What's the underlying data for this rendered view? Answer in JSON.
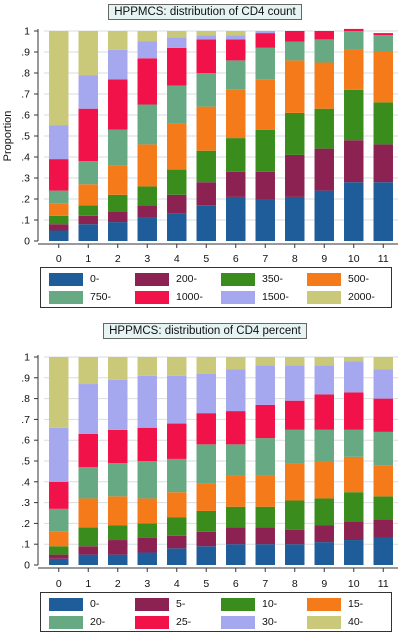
{
  "colors": [
    "#1e5d99",
    "#8c2251",
    "#3a8c1c",
    "#f47a1a",
    "#66a983",
    "#f2124a",
    "#a5a8ee",
    "#c9c979"
  ],
  "chart_data": [
    {
      "type": "bar",
      "stacked": true,
      "title": "HPPMCS: distribution of CD4 count",
      "xlabel": "",
      "ylabel": "Proportion",
      "ylim": [
        0,
        1
      ],
      "yticks": [
        0,
        ".1",
        ".2",
        ".3",
        ".4",
        ".5",
        ".6",
        ".7",
        ".8",
        ".9",
        "1"
      ],
      "grid": true,
      "legend": "bottom",
      "categories": [
        "0",
        "1",
        "2",
        "3",
        "4",
        "5",
        "6",
        "7",
        "8",
        "9",
        "10",
        "11"
      ],
      "series": [
        {
          "name": "0-",
          "values": [
            0.05,
            0.08,
            0.09,
            0.11,
            0.13,
            0.17,
            0.21,
            0.2,
            0.21,
            0.24,
            0.28,
            0.28
          ]
        },
        {
          "name": "200-",
          "values": [
            0.03,
            0.04,
            0.05,
            0.06,
            0.09,
            0.11,
            0.12,
            0.13,
            0.2,
            0.2,
            0.2,
            0.18
          ]
        },
        {
          "name": "350-",
          "values": [
            0.04,
            0.05,
            0.08,
            0.09,
            0.12,
            0.15,
            0.16,
            0.2,
            0.2,
            0.19,
            0.24,
            0.2
          ]
        },
        {
          "name": "500-",
          "values": [
            0.06,
            0.1,
            0.14,
            0.2,
            0.22,
            0.21,
            0.23,
            0.24,
            0.25,
            0.22,
            0.19,
            0.24
          ]
        },
        {
          "name": "750-",
          "values": [
            0.06,
            0.11,
            0.17,
            0.19,
            0.18,
            0.16,
            0.14,
            0.15,
            0.09,
            0.11,
            0.09,
            0.08
          ]
        },
        {
          "name": "1000-",
          "values": [
            0.15,
            0.25,
            0.24,
            0.22,
            0.18,
            0.16,
            0.1,
            0.07,
            0.05,
            0.04,
            0.01,
            0.01
          ]
        },
        {
          "name": "1500-",
          "values": [
            0.16,
            0.16,
            0.14,
            0.08,
            0.05,
            0.02,
            0.02,
            0.01,
            0.0,
            0.0,
            0.0,
            0.0
          ]
        },
        {
          "name": "2000-",
          "values": [
            0.45,
            0.21,
            0.09,
            0.05,
            0.03,
            0.02,
            0.02,
            0.0,
            0.0,
            0.0,
            0.0,
            0.0
          ]
        }
      ]
    },
    {
      "type": "bar",
      "stacked": true,
      "title": "HPPMCS: distribution of CD4 percent",
      "xlabel": "",
      "ylabel": "",
      "ylim": [
        0,
        1
      ],
      "yticks": [
        0,
        ".1",
        ".2",
        ".3",
        ".4",
        ".5",
        ".6",
        ".7",
        ".8",
        ".9",
        "1"
      ],
      "grid": true,
      "legend": "bottom",
      "categories": [
        "0",
        "1",
        "2",
        "3",
        "4",
        "5",
        "6",
        "7",
        "8",
        "9",
        "10",
        "11"
      ],
      "series": [
        {
          "name": "0-",
          "values": [
            0.03,
            0.05,
            0.05,
            0.06,
            0.08,
            0.09,
            0.1,
            0.1,
            0.1,
            0.11,
            0.12,
            0.13
          ]
        },
        {
          "name": "5-",
          "values": [
            0.02,
            0.04,
            0.07,
            0.07,
            0.06,
            0.07,
            0.08,
            0.08,
            0.07,
            0.08,
            0.09,
            0.09
          ]
        },
        {
          "name": "10-",
          "values": [
            0.04,
            0.09,
            0.07,
            0.07,
            0.09,
            0.1,
            0.1,
            0.1,
            0.14,
            0.13,
            0.14,
            0.11
          ]
        },
        {
          "name": "15-",
          "values": [
            0.07,
            0.14,
            0.14,
            0.12,
            0.12,
            0.13,
            0.15,
            0.15,
            0.18,
            0.18,
            0.17,
            0.15
          ]
        },
        {
          "name": "20-",
          "values": [
            0.11,
            0.15,
            0.16,
            0.18,
            0.16,
            0.19,
            0.15,
            0.18,
            0.16,
            0.15,
            0.13,
            0.16
          ]
        },
        {
          "name": "25-",
          "values": [
            0.13,
            0.16,
            0.16,
            0.16,
            0.17,
            0.15,
            0.16,
            0.16,
            0.14,
            0.17,
            0.18,
            0.16
          ]
        },
        {
          "name": "30-",
          "values": [
            0.26,
            0.24,
            0.24,
            0.25,
            0.23,
            0.19,
            0.2,
            0.19,
            0.17,
            0.14,
            0.15,
            0.14
          ]
        },
        {
          "name": "40-",
          "values": [
            0.34,
            0.13,
            0.11,
            0.09,
            0.09,
            0.08,
            0.06,
            0.04,
            0.04,
            0.04,
            0.02,
            0.06
          ]
        }
      ]
    }
  ]
}
